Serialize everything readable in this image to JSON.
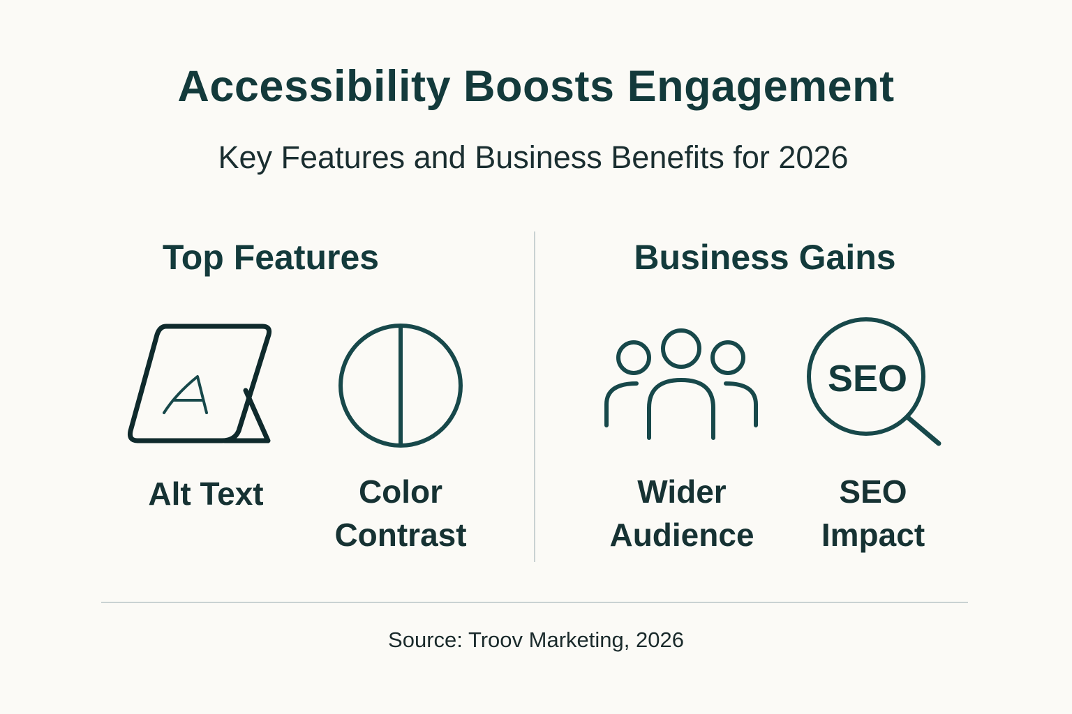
{
  "title": "Accessibility Boosts Engagement",
  "subtitle": "Key Features and Business Benefits for 2026",
  "sections": [
    {
      "heading": "Top Features",
      "items": [
        {
          "icon": "alt-text-tablet-icon",
          "line1": "Alt Text",
          "line2": ""
        },
        {
          "icon": "color-contrast-icon",
          "line1": "Color",
          "line2": "Contrast"
        }
      ]
    },
    {
      "heading": "Business Gains",
      "items": [
        {
          "icon": "people-group-icon",
          "line1": "Wider",
          "line2": "Audience"
        },
        {
          "icon": "seo-magnifier-icon",
          "line1": "SEO",
          "line2": "Impact",
          "icon_text": "SEO"
        }
      ]
    }
  ],
  "source": "Source: Troov Marketing, 2026",
  "colors": {
    "text": "#133a3b",
    "background": "#fbfaf6",
    "divider": "#c9d2d2"
  }
}
